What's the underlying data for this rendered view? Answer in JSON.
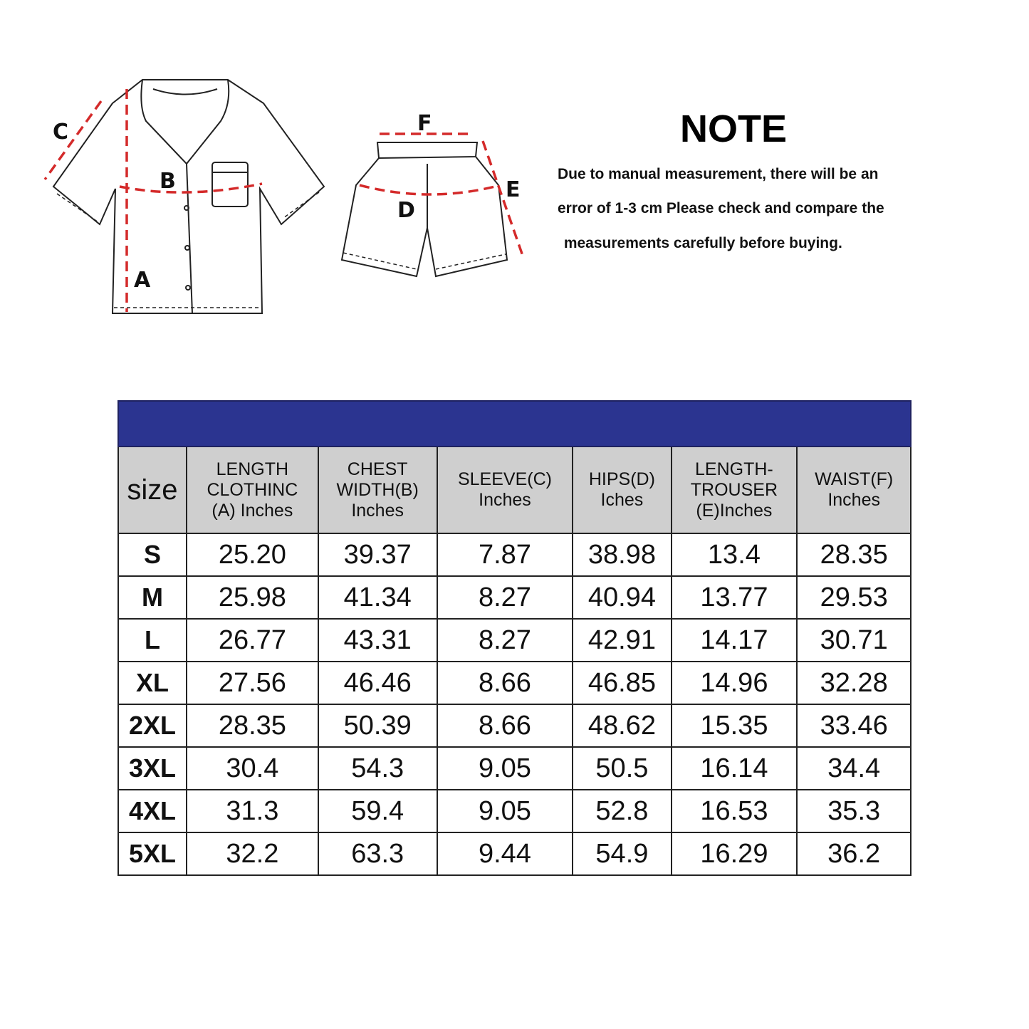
{
  "diagram": {
    "shirt_labels": {
      "a": "A",
      "b": "B",
      "c": "C"
    },
    "shorts_labels": {
      "d": "D",
      "e": "E",
      "f": "F"
    },
    "measure_line_color": "#d42a2a"
  },
  "note": {
    "title": "NOTE",
    "lines": [
      "Due to manual measurement, there will be an",
      "error of 1-3 cm Please check and compare the",
      " measurements carefully before buying."
    ]
  },
  "table": {
    "band_color": "#2b3490",
    "headers": [
      "size",
      "LENGTH CLOTHINC (A) Inches",
      "CHEST WIDTH(B) Inches",
      "SLEEVE(C) Inches",
      "HIPS(D) Iches",
      "LENGTH- TROUSER (E)Inches",
      "WAIST(F) Inches"
    ],
    "rows": [
      [
        "S",
        "25.20",
        "39.37",
        "7.87",
        "38.98",
        "13.4",
        "28.35"
      ],
      [
        "M",
        "25.98",
        "41.34",
        "8.27",
        "40.94",
        "13.77",
        "29.53"
      ],
      [
        "L",
        "26.77",
        "43.31",
        "8.27",
        "42.91",
        "14.17",
        "30.71"
      ],
      [
        "XL",
        "27.56",
        "46.46",
        "8.66",
        "46.85",
        "14.96",
        "32.28"
      ],
      [
        "2XL",
        "28.35",
        "50.39",
        "8.66",
        "48.62",
        "15.35",
        "33.46"
      ],
      [
        "3XL",
        "30.4",
        "54.3",
        "9.05",
        "50.5",
        "16.14",
        "34.4"
      ],
      [
        "4XL",
        "31.3",
        "59.4",
        "9.05",
        "52.8",
        "16.53",
        "35.3"
      ],
      [
        "5XL",
        "32.2",
        "63.3",
        "9.44",
        "54.9",
        "16.29",
        "36.2"
      ]
    ]
  }
}
